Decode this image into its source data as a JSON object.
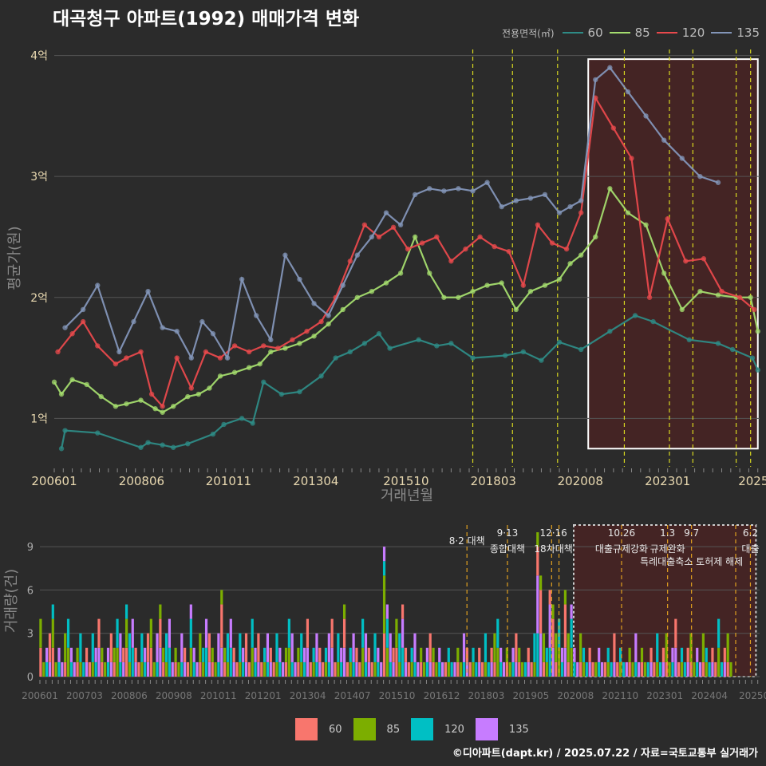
{
  "title": "대곡청구 아파트(1992) 매매가격 변화",
  "footer": "©디아파트(dapt.kr) / 2025.07.22 / 자료=국토교통부 실거래가",
  "legend_top": {
    "title": "전용면적(㎡)",
    "items": [
      {
        "label": "60",
        "color": "#2e8b86"
      },
      {
        "label": "85",
        "color": "#a4dc6e"
      },
      {
        "label": "120",
        "color": "#e8494c"
      },
      {
        "label": "135",
        "color": "#8395b8"
      }
    ]
  },
  "legend_bottom": {
    "items": [
      {
        "label": "60",
        "color": "#f8766d"
      },
      {
        "label": "85",
        "color": "#7cae00"
      },
      {
        "label": "120",
        "color": "#00bfc4"
      },
      {
        "label": "135",
        "color": "#c77cff"
      }
    ]
  },
  "chart_data": [
    {
      "type": "line",
      "title": "대곡청구 아파트(1992) 매매가격 변화",
      "xlabel": "거래년월",
      "ylabel": "평균가(원)",
      "x_tick_labels": [
        "200601",
        "200806",
        "201011",
        "201304",
        "201510",
        "201803",
        "202008",
        "202301",
        "2025"
      ],
      "y_tick_labels": [
        "1억",
        "2억",
        "3억",
        "4억"
      ],
      "ylim_eok": [
        0.6,
        4.05
      ],
      "xlim_year": [
        2006.0,
        2025.55
      ],
      "grid": true,
      "legend_position": "top-right",
      "highlight_region": {
        "x_from": 2020.8,
        "x_to": 2025.5,
        "y_from_eok": 0.75,
        "y_to_eok": 3.97
      },
      "policy_lines_year": [
        2017.6,
        2018.7,
        2019.95,
        2021.8,
        2023.05,
        2023.7,
        2024.9,
        2025.3
      ],
      "series": [
        {
          "name": "60",
          "color": "#2e8b86",
          "x": [
            2006.2,
            2006.3,
            2007.2,
            2008.4,
            2008.6,
            2009.0,
            2009.3,
            2009.7,
            2010.4,
            2010.7,
            2011.2,
            2011.5,
            2011.8,
            2012.3,
            2012.8,
            2013.4,
            2013.8,
            2014.2,
            2014.6,
            2015.0,
            2015.3,
            2016.1,
            2016.6,
            2017.0,
            2017.6,
            2018.5,
            2019.0,
            2019.5,
            2020.0,
            2020.6,
            2021.4,
            2022.1,
            2022.6,
            2023.6,
            2024.4,
            2024.8,
            2025.35,
            2025.5
          ],
          "y": [
            0.75,
            0.9,
            0.88,
            0.76,
            0.8,
            0.78,
            0.76,
            0.79,
            0.87,
            0.95,
            1.0,
            0.96,
            1.3,
            1.2,
            1.22,
            1.35,
            1.5,
            1.55,
            1.62,
            1.7,
            1.58,
            1.65,
            1.6,
            1.62,
            1.5,
            1.52,
            1.55,
            1.48,
            1.63,
            1.57,
            1.72,
            1.85,
            1.8,
            1.65,
            1.62,
            1.57,
            1.5,
            1.4
          ]
        },
        {
          "name": "85",
          "color": "#a4dc6e",
          "x": [
            2006.0,
            2006.2,
            2006.5,
            2006.9,
            2007.3,
            2007.7,
            2008.0,
            2008.4,
            2008.8,
            2009.0,
            2009.3,
            2009.7,
            2010.0,
            2010.3,
            2010.6,
            2011.0,
            2011.4,
            2011.7,
            2012.0,
            2012.4,
            2012.8,
            2013.2,
            2013.6,
            2014.0,
            2014.4,
            2014.8,
            2015.2,
            2015.6,
            2016.0,
            2016.4,
            2016.8,
            2017.2,
            2017.6,
            2018.0,
            2018.4,
            2018.8,
            2019.2,
            2019.6,
            2020.0,
            2020.3,
            2020.6,
            2021.0,
            2021.4,
            2021.9,
            2022.4,
            2022.9,
            2023.4,
            2023.9,
            2024.4,
            2024.9,
            2025.3,
            2025.5
          ],
          "y": [
            1.3,
            1.2,
            1.32,
            1.28,
            1.18,
            1.1,
            1.12,
            1.15,
            1.08,
            1.05,
            1.1,
            1.18,
            1.2,
            1.25,
            1.35,
            1.38,
            1.42,
            1.45,
            1.55,
            1.58,
            1.62,
            1.68,
            1.78,
            1.9,
            2.0,
            2.05,
            2.12,
            2.2,
            2.5,
            2.2,
            2.0,
            2.0,
            2.05,
            2.1,
            2.12,
            1.9,
            2.05,
            2.1,
            2.15,
            2.28,
            2.35,
            2.5,
            2.9,
            2.7,
            2.6,
            2.2,
            1.9,
            2.05,
            2.02,
            2.0,
            2.0,
            1.72
          ]
        },
        {
          "name": "120",
          "color": "#e8494c",
          "x": [
            2006.1,
            2006.5,
            2006.8,
            2007.2,
            2007.7,
            2008.0,
            2008.4,
            2008.7,
            2009.0,
            2009.4,
            2009.8,
            2010.2,
            2010.6,
            2011.0,
            2011.4,
            2011.8,
            2012.2,
            2012.6,
            2013.0,
            2013.4,
            2013.8,
            2014.2,
            2014.6,
            2015.0,
            2015.4,
            2015.8,
            2016.2,
            2016.6,
            2017.0,
            2017.4,
            2017.8,
            2018.2,
            2018.6,
            2019.0,
            2019.4,
            2019.8,
            2020.2,
            2020.6,
            2021.0,
            2021.5,
            2022.0,
            2022.5,
            2023.0,
            2023.5,
            2024.0,
            2024.5,
            2025.0,
            2025.4
          ],
          "y": [
            1.55,
            1.7,
            1.8,
            1.6,
            1.45,
            1.5,
            1.55,
            1.2,
            1.1,
            1.5,
            1.25,
            1.55,
            1.5,
            1.6,
            1.55,
            1.6,
            1.58,
            1.65,
            1.72,
            1.8,
            2.0,
            2.3,
            2.6,
            2.5,
            2.58,
            2.4,
            2.45,
            2.5,
            2.3,
            2.4,
            2.5,
            2.42,
            2.38,
            2.1,
            2.6,
            2.45,
            2.4,
            2.7,
            3.65,
            3.4,
            3.15,
            2.0,
            2.65,
            2.3,
            2.32,
            2.05,
            2.0,
            1.9
          ]
        },
        {
          "name": "135",
          "color": "#8395b8",
          "x": [
            2006.3,
            2006.8,
            2007.2,
            2007.8,
            2008.2,
            2008.6,
            2009.0,
            2009.4,
            2009.8,
            2010.1,
            2010.4,
            2010.8,
            2011.2,
            2011.6,
            2012.0,
            2012.4,
            2012.8,
            2013.2,
            2013.6,
            2014.0,
            2014.4,
            2014.8,
            2015.2,
            2015.6,
            2016.0,
            2016.4,
            2016.8,
            2017.2,
            2017.6,
            2018.0,
            2018.4,
            2018.8,
            2019.2,
            2019.6,
            2020.0,
            2020.3,
            2020.6,
            2021.0,
            2021.4,
            2021.9,
            2022.4,
            2022.9,
            2023.4,
            2023.9,
            2024.4
          ],
          "y": [
            1.75,
            1.9,
            2.1,
            1.55,
            1.8,
            2.05,
            1.75,
            1.72,
            1.5,
            1.8,
            1.7,
            1.5,
            2.15,
            1.85,
            1.65,
            2.35,
            2.15,
            1.95,
            1.85,
            2.1,
            2.35,
            2.5,
            2.7,
            2.6,
            2.85,
            2.9,
            2.88,
            2.9,
            2.88,
            2.95,
            2.75,
            2.8,
            2.82,
            2.85,
            2.7,
            2.75,
            2.8,
            3.8,
            3.9,
            3.7,
            3.5,
            3.3,
            3.15,
            3.0,
            2.95
          ]
        }
      ]
    },
    {
      "type": "bar",
      "ylabel": "거래량(건)",
      "x_tick_labels": [
        "200601",
        "200703",
        "200806",
        "200908",
        "201011",
        "201201",
        "201304",
        "201407",
        "201510",
        "201612",
        "201803",
        "201905",
        "202008",
        "202110",
        "202301",
        "202404",
        "20250"
      ],
      "y_tick_labels": [
        "0",
        "3",
        "6",
        "9"
      ],
      "ylim": [
        0,
        10.5
      ],
      "xlim_year": [
        2006.0,
        2025.55
      ],
      "highlight_region": {
        "x_from": 2020.5,
        "x_to": 2025.45
      },
      "policy_lines_year": [
        2017.6,
        2018.7,
        2019.9,
        2020.1,
        2021.8,
        2023.05,
        2023.7,
        2024.9,
        2025.3
      ],
      "annotations": [
        {
          "line1": "8·2 대책",
          "line2": ""
        },
        {
          "line1": "9·13",
          "line2": "종합대책"
        },
        {
          "line1": "12·16",
          "line2": "18차대책"
        },
        {
          "line1": "10.26",
          "line2": "대출규제강화"
        },
        {
          "line1": "1.3",
          "line2": "규제완화"
        },
        {
          "line1": "9.7",
          "line2": "특례대출축소 토허제 해제"
        },
        {
          "line1": "6.2",
          "line2": "대출"
        }
      ],
      "volume_total_by_month": [
        4,
        1,
        2,
        3,
        5,
        1,
        2,
        1,
        3,
        4,
        2,
        1,
        2,
        3,
        1,
        2,
        1,
        3,
        2,
        4,
        2,
        1,
        2,
        3,
        2,
        4,
        3,
        2,
        5,
        3,
        4,
        2,
        1,
        3,
        2,
        3,
        4,
        1,
        3,
        5,
        2,
        3,
        4,
        1,
        2,
        1,
        3,
        2,
        1,
        5,
        2,
        1,
        3,
        2,
        4,
        3,
        2,
        1,
        3,
        6,
        2,
        3,
        4,
        2,
        1,
        3,
        2,
        3,
        1,
        4,
        2,
        3,
        1,
        2,
        3,
        2,
        1,
        3,
        2,
        1,
        2,
        4,
        3,
        1,
        2,
        3,
        2,
        4,
        1,
        2,
        3,
        2,
        1,
        2,
        3,
        4,
        1,
        3,
        2,
        5,
        1,
        2,
        3,
        2,
        1,
        4,
        3,
        2,
        1,
        3,
        2,
        1,
        9,
        5,
        3,
        2,
        4,
        3,
        5,
        2,
        1,
        2,
        3,
        1,
        2,
        1,
        2,
        3,
        2,
        1,
        2,
        1,
        1,
        2,
        1,
        1,
        2,
        1,
        3,
        2,
        1,
        2,
        1,
        2,
        1,
        3,
        1,
        2,
        3,
        4,
        2,
        1,
        2,
        1,
        2,
        3,
        2,
        1,
        1,
        2,
        1,
        3,
        10,
        7,
        3,
        2,
        6,
        5,
        3,
        4,
        2,
        6,
        3,
        5,
        2,
        1,
        3,
        2,
        1,
        2,
        1,
        1,
        2,
        1,
        1,
        2,
        1,
        3,
        1,
        2,
        1,
        1,
        2,
        1,
        3,
        1,
        2,
        1,
        1,
        2,
        1,
        3,
        1,
        2,
        3,
        1,
        2,
        4,
        1,
        2,
        1,
        2,
        3,
        1,
        2,
        1,
        3,
        2,
        1,
        2,
        1,
        4,
        1,
        2,
        3,
        1
      ]
    }
  ]
}
